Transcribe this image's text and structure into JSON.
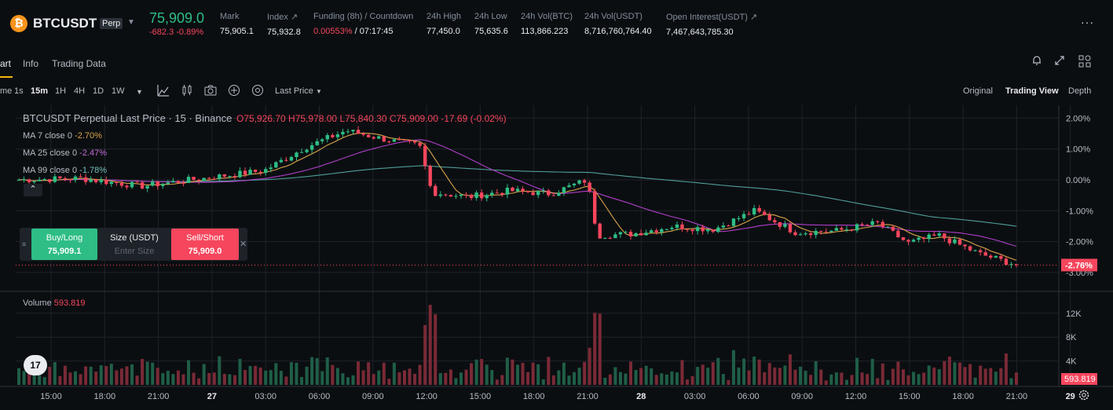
{
  "header": {
    "symbol": "BTCUSDT",
    "perp_badge": "Perp",
    "price": "75,909.0",
    "change": "-682.3 -0.89%",
    "stats": [
      {
        "label": "Mark",
        "value": "75,905.1"
      },
      {
        "label": "Index ↗",
        "value": "75,932.8"
      },
      {
        "label": "Funding (8h) / Countdown",
        "value_red": "0.00553%",
        "value": " / 07:17:45"
      },
      {
        "label": "24h High",
        "value": "77,450.0"
      },
      {
        "label": "24h Low",
        "value": "75,635.6"
      },
      {
        "label": "24h Vol(BTC)",
        "value": "113,866.223"
      },
      {
        "label": "24h Vol(USDT)",
        "value": "8,716,760,764.40"
      },
      {
        "label": "Open Interest(USDT) ↗",
        "value": "7,467,643,785.30"
      }
    ]
  },
  "tabs": {
    "chart": "art",
    "info": "Info",
    "trading_data": "Trading Data"
  },
  "toolbar": {
    "time_label": "me",
    "intervals": [
      "1s",
      "15m",
      "1H",
      "4H",
      "1D",
      "1W"
    ],
    "active_interval": "15m",
    "price_type": "Last Price",
    "views": [
      "Original",
      "Trading View",
      "Depth"
    ],
    "active_view": "Trading View"
  },
  "legend": {
    "title": "BTCUSDT Perpetual Last Price · 15 · Binance",
    "ohlc": "O75,926.70 H75,978.00 L75,840.30 C75,909.00 -17.69 (-0.02%)",
    "ma7_label": "MA 7 close 0",
    "ma7_value": "-2.70%",
    "ma25_label": "MA 25 close 0",
    "ma25_value": "-2.47%",
    "ma99_label": "MA 99 close 0",
    "ma99_value": "-1.78%",
    "volume_label": "Volume",
    "volume_value": "593.819"
  },
  "trade": {
    "buy_label": "Buy/Long",
    "buy_price": "75,909.1",
    "size_label": "Size (USDT)",
    "size_placeholder": "Enter Size",
    "sell_label": "Sell/Short",
    "sell_price": "75,909.0"
  },
  "tv_logo": "17",
  "colors": {
    "up": "#2ebd85",
    "down": "#f6465d",
    "ma7": "#d9a54b",
    "ma25": "#b03fc9",
    "ma99": "#4f9e98"
  },
  "chart_data": {
    "type": "candlestick",
    "y_axis_ticks": [
      "2.00%",
      "1.00%",
      "0.00%",
      "-1.00%",
      "-2.00%",
      "-3.00%"
    ],
    "current_value_label": "-2.76%",
    "volume_axis_ticks": [
      "12K",
      "8K",
      "4K"
    ],
    "volume_current_label": "593.819",
    "x_axis_ticks": [
      "15:00",
      "18:00",
      "21:00",
      "27",
      "03:00",
      "06:00",
      "09:00",
      "12:00",
      "15:00",
      "18:00",
      "21:00",
      "28",
      "03:00",
      "06:00",
      "09:00",
      "12:00",
      "15:00",
      "18:00",
      "21:00",
      "29"
    ],
    "close_pct_anchors": [
      [
        0,
        0.0
      ],
      [
        3,
        0.05
      ],
      [
        6,
        -0.2
      ],
      [
        9,
        0.05
      ],
      [
        12,
        0.3
      ],
      [
        14,
        1.05
      ],
      [
        16,
        1.6
      ],
      [
        18,
        1.3
      ],
      [
        19.6,
        1.1
      ],
      [
        20.2,
        -0.4
      ],
      [
        22,
        -0.55
      ],
      [
        24,
        -0.35
      ],
      [
        26,
        -0.45
      ],
      [
        27.8,
        0.0
      ],
      [
        28.3,
        -1.8
      ],
      [
        30,
        -1.75
      ],
      [
        32,
        -1.5
      ],
      [
        34,
        -1.6
      ],
      [
        36,
        -1.0
      ],
      [
        38,
        -1.7
      ],
      [
        40,
        -1.65
      ],
      [
        42,
        -1.4
      ],
      [
        43.5,
        -2.05
      ],
      [
        45,
        -1.8
      ],
      [
        47,
        -2.4
      ],
      [
        48.8,
        -2.75
      ]
    ]
  }
}
